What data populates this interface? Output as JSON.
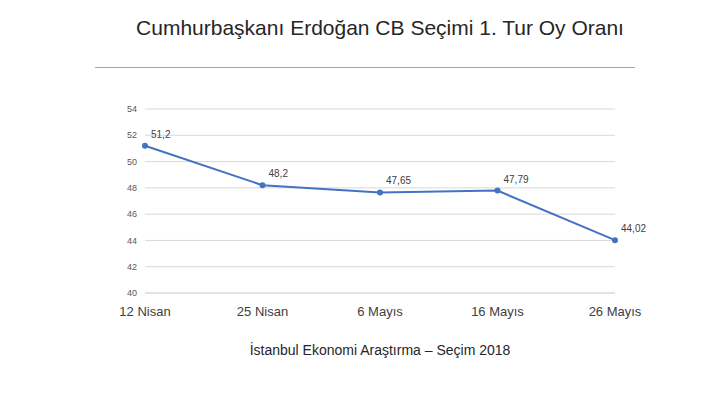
{
  "chart_data": {
    "type": "line",
    "title": "Cumhurbaşkanı Erdoğan CB Seçimi 1. Tur Oy Oranı",
    "subtitle": "İstanbul Ekonomi Araştırma – Seçim 2018",
    "categories": [
      "12 Nisan",
      "25 Nisan",
      "6 Mayıs",
      "16 Mayıs",
      "26 Mayıs"
    ],
    "values": [
      51.2,
      48.2,
      47.65,
      47.79,
      44.02
    ],
    "value_labels": [
      "51,2",
      "48,2",
      "47,65",
      "47,79",
      "44,02"
    ],
    "color": "#4472c4",
    "ylim": [
      40,
      54
    ],
    "yticks": [
      40,
      42,
      44,
      46,
      48,
      50,
      52,
      54
    ],
    "grid": true,
    "data_labels": true,
    "marker": "circle"
  }
}
